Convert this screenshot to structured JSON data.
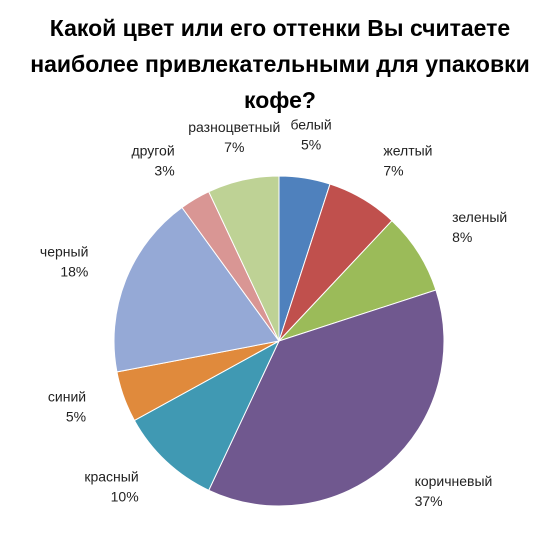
{
  "chart_data": {
    "type": "pie",
    "title": "Какой цвет или его оттенки Вы считаете наиболее привлекательными для упаковки кофе?",
    "categories": [
      "белый",
      "желтый",
      "зеленый",
      "коричневый",
      "красный",
      "синий",
      "черный",
      "другой",
      "разноцветный"
    ],
    "values": [
      5,
      7,
      8,
      37,
      10,
      5,
      18,
      3,
      7
    ],
    "value_labels": [
      "5%",
      "7%",
      "8%",
      "37%",
      "10%",
      "5%",
      "18%",
      "3%",
      "7%"
    ],
    "colors": [
      "#4f81bd",
      "#c0504d",
      "#9bbb59",
      "#70588f",
      "#4099b3",
      "#e08a3c",
      "#95a9d6",
      "#d99694",
      "#bed295"
    ]
  }
}
